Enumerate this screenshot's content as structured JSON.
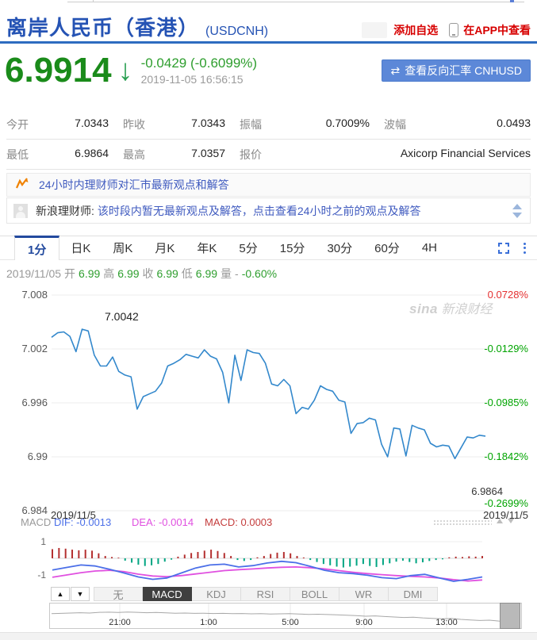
{
  "header": {
    "title": "离岸人民币（香港）",
    "symbol": "(USDCNH)",
    "add_watchlist": "添加自选",
    "view_in_app": "在APP中查看"
  },
  "quote": {
    "price": "6.9914",
    "arrow": "↓",
    "change": "-0.0429 (-0.6099%)",
    "timestamp": "2019-11-05 16:56:15",
    "reverse_icon": "⇄",
    "reverse_button": "查看反向汇率 CNHUSD"
  },
  "stats": {
    "cells": [
      {
        "label": "今开",
        "value": "7.0343"
      },
      {
        "label": "昨收",
        "value": "7.0343"
      },
      {
        "label": "振幅",
        "value": "0.7009%"
      },
      {
        "label": "波幅",
        "value": "0.0493"
      },
      {
        "label": "最低",
        "value": "6.9864"
      },
      {
        "label": "最高",
        "value": "7.0357"
      },
      {
        "label": "报价",
        "value": "Axicorp Financial Services"
      }
    ]
  },
  "advisor": {
    "headline": "24小时内理财师对汇市最新观点和解答",
    "source": "新浪理财师:",
    "message": "该时段内暂无最新观点及解答，点击查看24小时之前的观点及解答"
  },
  "period_tabs": {
    "items": [
      "1分",
      "日K",
      "周K",
      "月K",
      "年K",
      "5分",
      "15分",
      "30分",
      "60分",
      "4H"
    ],
    "active": "1分"
  },
  "ohlc_segments": [
    {
      "text": "2019/11/05",
      "color": "muted"
    },
    {
      "text": "开",
      "color": "muted"
    },
    {
      "text": "6.99",
      "color": "green"
    },
    {
      "text": "高",
      "color": "muted"
    },
    {
      "text": "6.99",
      "color": "green"
    },
    {
      "text": "收",
      "color": "muted"
    },
    {
      "text": "6.99",
      "color": "green"
    },
    {
      "text": "低",
      "color": "muted"
    },
    {
      "text": "6.99",
      "color": "green"
    },
    {
      "text": "量",
      "color": "muted"
    },
    {
      "text": "-",
      "color": "muted"
    },
    {
      "text": "-0.60%",
      "color": "green"
    }
  ],
  "watermark": {
    "brand": "sina",
    "text": "新浪财经"
  },
  "chart_data": [
    {
      "type": "line",
      "name": "USDCNH 1-minute price",
      "yticks": [
        7.008,
        7.002,
        6.996,
        6.99,
        6.984
      ],
      "right_axis": [
        {
          "label": "0.0728%",
          "color": "#e43030",
          "at": 7.008
        },
        {
          "label": "-0.0129%",
          "color": "#00a400",
          "at": 7.002
        },
        {
          "label": "-0.0985%",
          "color": "#00a400",
          "at": 6.996
        },
        {
          "label": "-0.1842%",
          "color": "#00a400",
          "at": 6.99
        },
        {
          "label": "-0.2699%",
          "color": "#00a400",
          "at": 6.984
        }
      ],
      "low_cluster": {
        "price": "6.9864",
        "pct": "-0.2699%",
        "date": "2019/11/5"
      },
      "x_start_label": "2019/11/5",
      "x_end_label": "2019/11/5",
      "high_annotation": "7.0042",
      "ylim": [
        6.984,
        7.008
      ],
      "values": [
        7.0033,
        7.0038,
        7.0039,
        7.0034,
        7.0017,
        7.0042,
        7.004,
        7.0013,
        7.0001,
        7.0001,
        7.0011,
        6.9995,
        6.9991,
        6.9989,
        6.9953,
        6.9967,
        6.997,
        6.9973,
        6.9982,
        7.0001,
        7.0004,
        7.0008,
        7.0014,
        7.0012,
        7.001,
        7.0019,
        7.0012,
        7.0009,
        6.9994,
        6.996,
        7.0013,
        6.9985,
        7.0019,
        7.0016,
        7.0015,
        7.0004,
        6.9981,
        6.9979,
        6.9986,
        6.9979,
        6.9948,
        6.9955,
        6.9953,
        6.9963,
        6.9979,
        6.9975,
        6.9973,
        6.9963,
        6.9961,
        6.9926,
        6.9937,
        6.9938,
        6.9943,
        6.9941,
        6.9914,
        6.99,
        6.9932,
        6.9931,
        6.9901,
        6.9935,
        6.9932,
        6.993,
        6.9915,
        6.9911,
        6.9913,
        6.9912,
        6.9898,
        6.991,
        6.9922,
        6.9921,
        6.9924,
        6.9923
      ],
      "line_color": "#3388cc"
    },
    {
      "type": "bar+line",
      "name": "MACD",
      "legend": [
        "DIF: -0.0013",
        "DEA: -0.0014",
        "MACD: 0.0003"
      ],
      "yticks": [
        "1",
        "-1"
      ],
      "ylim": [
        -1,
        1
      ],
      "hist": [
        0.55,
        0.62,
        0.58,
        0.52,
        0.48,
        0.52,
        0.46,
        0.3,
        0.14,
        0.08,
        0.04,
        -0.14,
        -0.26,
        -0.38,
        -0.46,
        -0.42,
        -0.34,
        -0.2,
        -0.08,
        0.1,
        0.22,
        0.32,
        0.38,
        0.46,
        0.52,
        0.44,
        0.32,
        0.14,
        -0.1,
        -0.16,
        -0.1,
        0.06,
        0.14,
        0.26,
        0.34,
        0.38,
        0.3,
        0.14,
        0.05,
        -0.1,
        -0.22,
        -0.34,
        -0.42,
        -0.5,
        -0.55,
        -0.5,
        -0.44,
        -0.34,
        -0.46,
        -0.52,
        -0.4,
        -0.3,
        -0.2,
        -0.14,
        -0.22,
        -0.3,
        -0.24,
        -0.16,
        -0.1,
        -0.06,
        0.06,
        0.1,
        0.08,
        0.12,
        0.1,
        0.14
      ],
      "dif": [
        -0.7,
        -0.55,
        -0.4,
        -0.46,
        -0.66,
        -0.88,
        -1.12,
        -1.26,
        -1.18,
        -0.88,
        -0.58,
        -0.4,
        -0.35,
        -0.52,
        -0.44,
        -0.28,
        -0.18,
        -0.26,
        -0.48,
        -0.72,
        -0.86,
        -0.92,
        -1.02,
        -1.16,
        -1.22,
        -1.04,
        -0.96,
        -1.18,
        -1.38,
        -1.26,
        -1.12
      ],
      "dea": [
        -1.14,
        -1.0,
        -0.86,
        -0.76,
        -0.72,
        -0.8,
        -0.95,
        -1.06,
        -1.1,
        -1.04,
        -0.94,
        -0.84,
        -0.74,
        -0.68,
        -0.64,
        -0.58,
        -0.54,
        -0.52,
        -0.56,
        -0.64,
        -0.74,
        -0.84,
        -0.92,
        -0.98,
        -1.04,
        -1.08,
        -1.12,
        -1.18,
        -1.28,
        -1.36,
        -1.3
      ],
      "colors": {
        "hist_pos": "#b43030",
        "hist_neg": "#00a582",
        "dif": "#4b6fe8",
        "dea": "#e050e0"
      }
    },
    {
      "type": "line",
      "name": "navigator",
      "xticks": [
        "21:00",
        "1:00",
        "5:00",
        "9:00",
        "13:00"
      ],
      "values": [
        0.42,
        0.4,
        0.38,
        0.36,
        0.38,
        0.34,
        0.33,
        0.35,
        0.32,
        0.34,
        0.36,
        0.35,
        0.37,
        0.39,
        0.38,
        0.4,
        0.39,
        0.41,
        0.4,
        0.42,
        0.41,
        0.43,
        0.42,
        0.44,
        0.43,
        0.42,
        0.44,
        0.46,
        0.45,
        0.47,
        0.49,
        0.51,
        0.54,
        0.57,
        0.55,
        0.59,
        0.62,
        0.65,
        0.63,
        0.67,
        0.7,
        0.73,
        0.71,
        0.76,
        0.8,
        0.83,
        0.81,
        0.86,
        0.9,
        0.93
      ],
      "line_color": "#a8a8a8"
    }
  ],
  "indicator_tabs": {
    "items": [
      "无",
      "MACD",
      "KDJ",
      "RSI",
      "BOLL",
      "WR",
      "DMI"
    ],
    "active": "MACD",
    "up_button": "▲",
    "down_button": "▼"
  }
}
